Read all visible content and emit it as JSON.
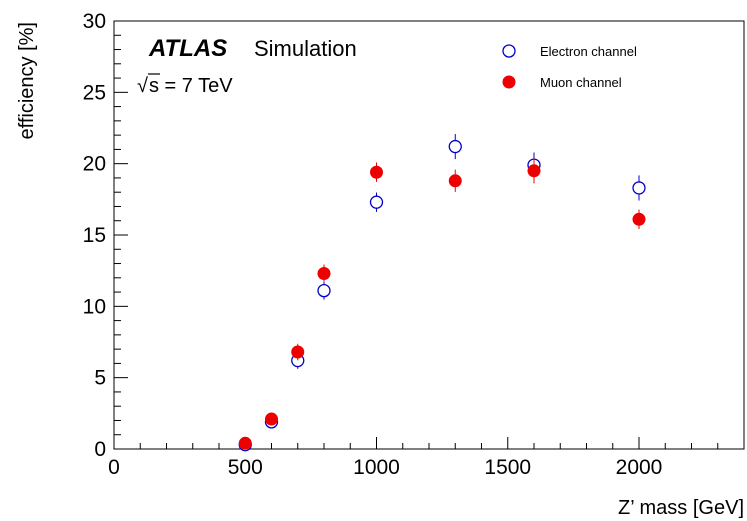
{
  "chart_data": {
    "type": "scatter",
    "xlabel": "Z’ mass [GeV]",
    "ylabel": "efficiency [%]",
    "xlim": [
      0,
      2400
    ],
    "ylim": [
      0,
      30
    ],
    "x_ticks": [
      "0",
      "500",
      "1000",
      "1500",
      "2000"
    ],
    "y_ticks": [
      "0",
      "5",
      "10",
      "15",
      "20",
      "25",
      "30"
    ],
    "x_tick_values": [
      0,
      500,
      1000,
      1500,
      2000
    ],
    "y_tick_values": [
      0,
      5,
      10,
      15,
      20,
      25,
      30
    ],
    "annotation": {
      "experiment": "ATLAS",
      "label": "Simulation",
      "energy_sqrt": "√",
      "energy_rest": "s = 7 TeV"
    },
    "legend_position": "top-right",
    "grid": false,
    "series": [
      {
        "name": "Electron channel",
        "marker": "open-circle",
        "color": "#0000cc",
        "points": [
          {
            "x": 500,
            "y": 0.3,
            "err": 0.05
          },
          {
            "x": 600,
            "y": 1.9,
            "err": 0.15
          },
          {
            "x": 700,
            "y": 6.2,
            "err": 0.3
          },
          {
            "x": 800,
            "y": 11.1,
            "err": 0.35
          },
          {
            "x": 1000,
            "y": 17.3,
            "err": 0.4
          },
          {
            "x": 1300,
            "y": 21.2,
            "err": 0.6
          },
          {
            "x": 1600,
            "y": 19.9,
            "err": 0.6
          },
          {
            "x": 2000,
            "y": 18.3,
            "err": 0.6
          }
        ]
      },
      {
        "name": "Muon channel",
        "marker": "filled-circle",
        "color": "#ee0000",
        "points": [
          {
            "x": 500,
            "y": 0.4,
            "err": 0.05
          },
          {
            "x": 600,
            "y": 2.1,
            "err": 0.15
          },
          {
            "x": 700,
            "y": 6.8,
            "err": 0.3
          },
          {
            "x": 800,
            "y": 12.3,
            "err": 0.35
          },
          {
            "x": 1000,
            "y": 19.4,
            "err": 0.4
          },
          {
            "x": 1300,
            "y": 18.8,
            "err": 0.5
          },
          {
            "x": 1600,
            "y": 19.5,
            "err": 0.6
          },
          {
            "x": 2000,
            "y": 16.1,
            "err": 0.4
          }
        ]
      }
    ]
  }
}
